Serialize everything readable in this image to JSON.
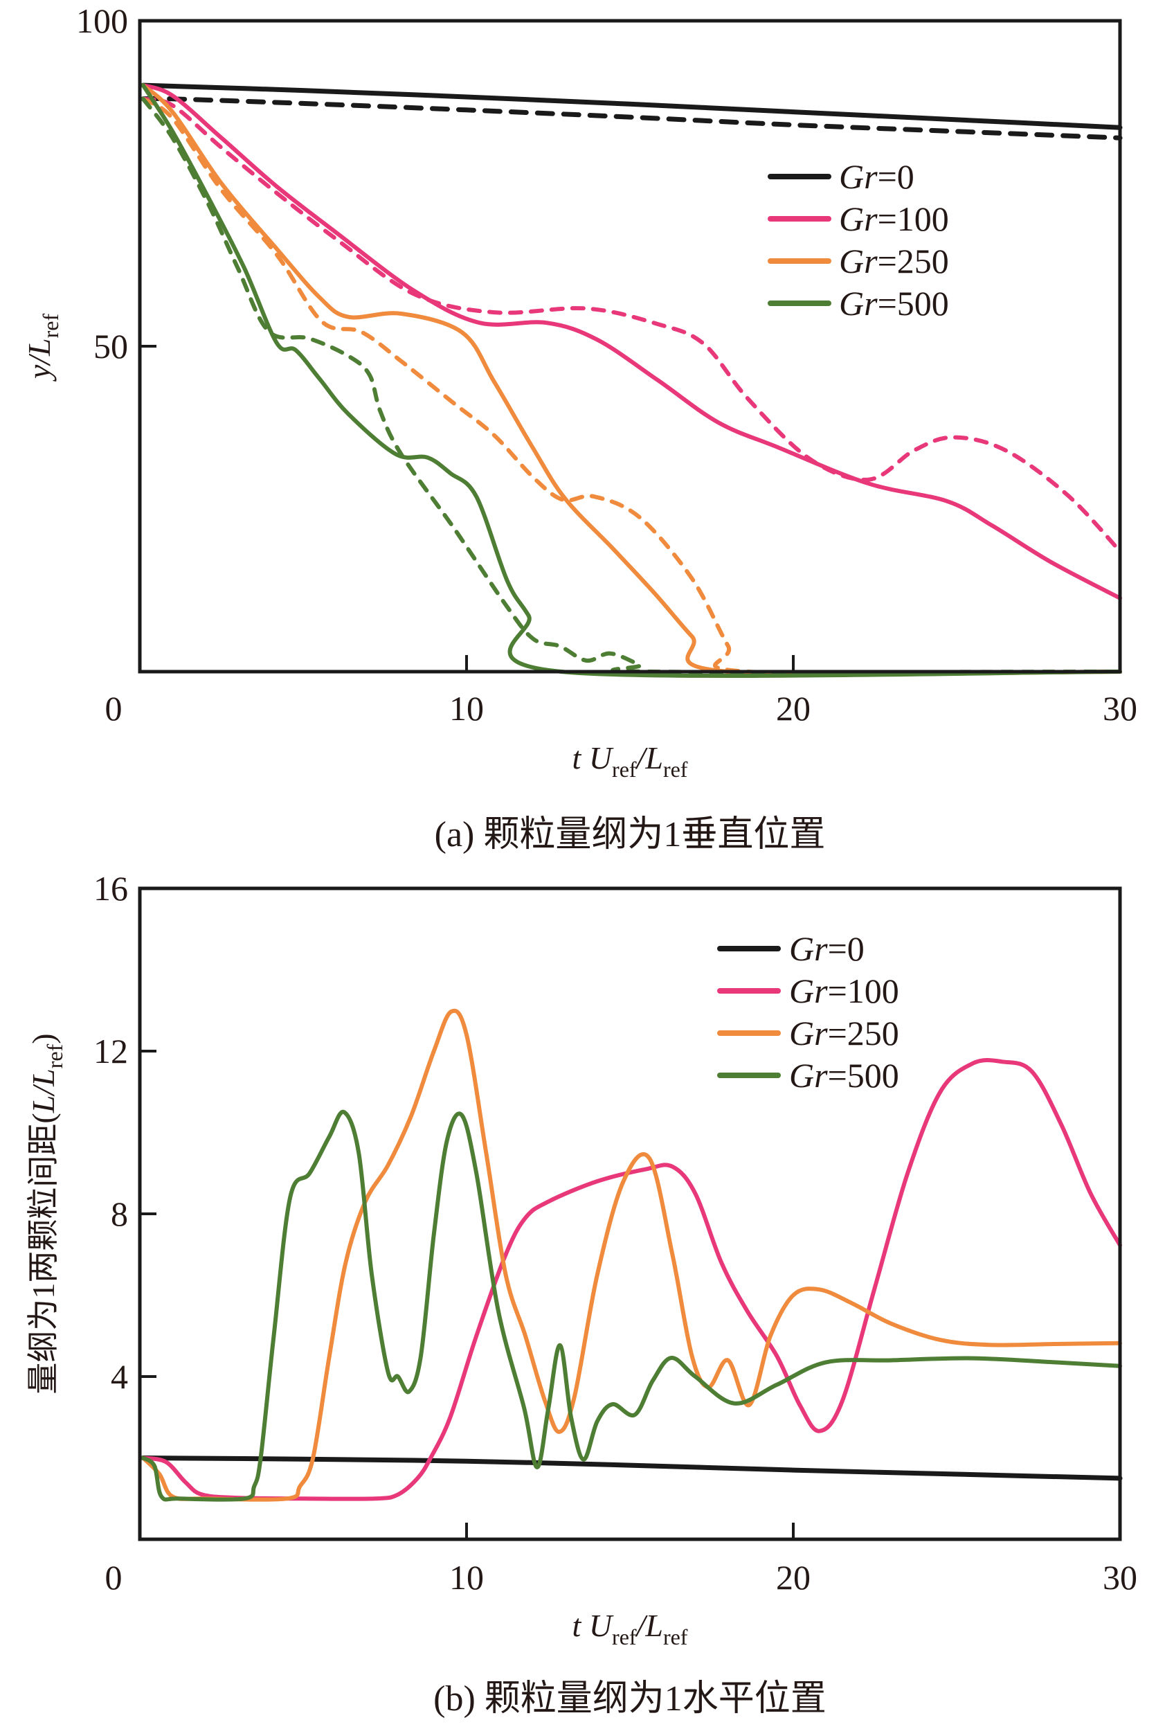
{
  "figure": {
    "colors": {
      "Gr=0": "#1a1a1a",
      "Gr=100": "#e8387a",
      "Gr=250": "#f08a3c",
      "Gr=500": "#4e7d34"
    }
  },
  "chart_data": [
    {
      "id": "a",
      "type": "line",
      "title": "",
      "caption": "(a) 颗粒量纲为1垂直位置",
      "xlabel": "t U_ref/L_ref",
      "ylabel": "y/L_ref",
      "xlim": [
        0,
        30
      ],
      "ylim": [
        0,
        100
      ],
      "xticks": [
        0,
        10,
        20,
        30
      ],
      "yticks": [
        50,
        100
      ],
      "grid": false,
      "legend": {
        "placement": "upper-right",
        "entries": [
          "Gr=0",
          "Gr=100",
          "Gr=250",
          "Gr=500"
        ]
      },
      "series": [
        {
          "name": "Gr=0",
          "style": "solid",
          "color": "#1a1a1a",
          "x": [
            0.1,
            5,
            10,
            15,
            20,
            25,
            30
          ],
          "y": [
            90.1,
            89.3,
            88.3,
            87.2,
            86.0,
            84.8,
            83.6
          ]
        },
        {
          "name": "Gr=0",
          "style": "dashed",
          "color": "#1a1a1a",
          "x": [
            0.1,
            1,
            5,
            10,
            15,
            20,
            25,
            30
          ],
          "y": [
            88.0,
            88.0,
            87.3,
            86.3,
            85.2,
            84.0,
            83.0,
            82.0
          ]
        },
        {
          "name": "Gr=100",
          "style": "solid",
          "color": "#e8387a",
          "x": [
            0.1,
            1,
            2.5,
            4.2,
            6,
            8.4,
            10.4,
            12.45,
            14,
            15.85,
            17.7,
            19.56,
            22.3,
            24.7,
            26.1,
            27.9,
            30
          ],
          "y": [
            90.1,
            88.5,
            82,
            74.5,
            67.5,
            58.5,
            53.6,
            53.6,
            51,
            44.8,
            38.3,
            34.4,
            28.9,
            26.2,
            22.4,
            16.8,
            11.3
          ]
        },
        {
          "name": "Gr=100",
          "style": "dashed",
          "color": "#e8387a",
          "x": [
            0.1,
            1,
            2.5,
            4.2,
            6,
            8.4,
            10.85,
            13.67,
            15.85,
            17.25,
            18.6,
            20.5,
            22.3,
            23.7,
            24.9,
            26.5,
            28.4,
            30
          ],
          "y": [
            88.0,
            87,
            80.5,
            73.5,
            66.5,
            58.0,
            55.2,
            55.8,
            53.4,
            50.4,
            42.0,
            32.7,
            29.5,
            34.0,
            36.0,
            34.0,
            27.1,
            18.5
          ]
        },
        {
          "name": "Gr=250",
          "style": "solid",
          "color": "#f08a3c",
          "x": [
            0.1,
            1,
            2.5,
            4.2,
            5.5,
            6.38,
            8.0,
            9.87,
            10.85,
            12.05,
            13.03,
            14.5,
            15.78,
            16.9,
            18.0,
            30
          ],
          "y": [
            90.1,
            86,
            75,
            64.9,
            57.5,
            54.5,
            55.0,
            52.1,
            44.5,
            34.2,
            26.5,
            18.8,
            11.9,
            5.4,
            0,
            0
          ]
        },
        {
          "name": "Gr=250",
          "style": "dashed",
          "color": "#f08a3c",
          "x": [
            0.1,
            1,
            2.5,
            4.2,
            5.57,
            6.78,
            8.0,
            9.62,
            10.85,
            12.05,
            12.95,
            13.9,
            15.3,
            16.9,
            18.0,
            18.6,
            30
          ],
          "y": [
            88.0,
            85,
            74,
            64.0,
            53.8,
            52.2,
            47.7,
            41.2,
            36.3,
            29.8,
            26.4,
            26.9,
            23.7,
            14.3,
            4,
            0,
            0
          ]
        },
        {
          "name": "Gr=500",
          "style": "solid",
          "color": "#4e7d34",
          "x": [
            0.1,
            1,
            2.08,
            3.2,
            4.19,
            4.77,
            5.5,
            6.38,
            7.84,
            8.8,
            9.5,
            10.3,
            11.25,
            11.9,
            12.9,
            30
          ],
          "y": [
            90.1,
            83,
            73,
            62,
            50.5,
            49.4,
            45,
            39.6,
            33.4,
            32.9,
            30.5,
            26.9,
            13.9,
            8.6,
            0,
            0
          ]
        },
        {
          "name": "Gr=500",
          "style": "dashed",
          "color": "#4e7d34",
          "x": [
            0.1,
            1,
            2.08,
            3.0,
            3.94,
            5.17,
            6.38,
            7.03,
            7.36,
            8.0,
            9.62,
            11.25,
            12.05,
            12.86,
            13.67,
            14.4,
            15.3,
            15.6,
            30
          ],
          "y": [
            88.0,
            82,
            72,
            62,
            52.3,
            51.2,
            48.5,
            45.6,
            40.0,
            33.4,
            22.0,
            9.9,
            5.0,
            3.9,
            1.7,
            2.8,
            1.0,
            0,
            0
          ]
        }
      ]
    },
    {
      "id": "b",
      "type": "line",
      "title": "",
      "caption": "(b) 颗粒量纲为1水平位置",
      "xlabel": "t U_ref/L_ref",
      "ylabel": "量纲为1两颗粒间距(L/L_ref)",
      "xlim": [
        0,
        30
      ],
      "ylim": [
        0,
        16
      ],
      "xticks": [
        0,
        10,
        20,
        30
      ],
      "yticks": [
        4,
        8,
        12,
        16
      ],
      "grid": false,
      "legend": {
        "placement": "upper-right",
        "entries": [
          "Gr=0",
          "Gr=100",
          "Gr=250",
          "Gr=500"
        ]
      },
      "series": [
        {
          "name": "Gr=0",
          "style": "solid",
          "color": "#1a1a1a",
          "x": [
            0.1,
            5,
            10,
            15,
            20,
            25,
            30
          ],
          "y": [
            2.0,
            1.97,
            1.92,
            1.82,
            1.7,
            1.6,
            1.5
          ]
        },
        {
          "name": "Gr=100",
          "style": "solid",
          "color": "#e8387a",
          "x": [
            0.1,
            0.8,
            1.4,
            1.9,
            3,
            5,
            7.2,
            7.9,
            8.5,
            8.9,
            9.5,
            10.3,
            11.2,
            11.8,
            12.5,
            14,
            15.5,
            16.3,
            17.0,
            17.8,
            18.6,
            19.5,
            20.2,
            20.8,
            21.5,
            22.5,
            23.5,
            24.5,
            25.5,
            26.4,
            27.3,
            28.2,
            29.1,
            30
          ],
          "y": [
            2.0,
            1.9,
            1.4,
            1.1,
            1.02,
            1.0,
            1.0,
            1.1,
            1.5,
            2.0,
            3.0,
            5.0,
            7.0,
            7.9,
            8.3,
            8.8,
            9.1,
            9.16,
            8.5,
            6.8,
            5.6,
            4.5,
            3.3,
            2.66,
            3.4,
            6.2,
            9.0,
            11.0,
            11.7,
            11.74,
            11.5,
            10.2,
            8.5,
            7.23
          ]
        },
        {
          "name": "Gr=250",
          "style": "solid",
          "color": "#f08a3c",
          "x": [
            0.1,
            0.6,
            1.0,
            2,
            4.5,
            4.9,
            5.3,
            5.8,
            6.3,
            6.9,
            7.6,
            8.3,
            9.0,
            9.53,
            10.0,
            10.6,
            11.2,
            11.8,
            12.4,
            12.84,
            13.3,
            14.0,
            14.8,
            15.6,
            16.3,
            16.9,
            17.4,
            18.0,
            18.65,
            19.3,
            20.0,
            20.8,
            21.8,
            23.0,
            24.5,
            26,
            28,
            30
          ],
          "y": [
            2.0,
            1.6,
            1.05,
            1.0,
            1.0,
            1.3,
            2.0,
            4.5,
            6.8,
            8.3,
            9.2,
            10.4,
            12.0,
            12.97,
            12.4,
            9.5,
            6.5,
            5.0,
            3.4,
            2.64,
            3.5,
            6.5,
            8.8,
            9.36,
            7.0,
            4.5,
            3.74,
            4.4,
            3.3,
            5.0,
            6.0,
            6.14,
            5.8,
            5.3,
            4.9,
            4.78,
            4.8,
            4.82
          ]
        },
        {
          "name": "Gr=500",
          "style": "solid",
          "color": "#4e7d34",
          "x": [
            0.1,
            0.45,
            0.66,
            1.2,
            3.2,
            3.5,
            3.7,
            4.1,
            4.6,
            5.2,
            5.8,
            6.25,
            6.7,
            7.1,
            7.6,
            7.9,
            8.24,
            8.6,
            9.0,
            9.4,
            9.85,
            10.3,
            10.97,
            11.76,
            12.16,
            12.5,
            12.86,
            13.2,
            13.58,
            14.0,
            14.47,
            15.15,
            15.7,
            16.27,
            17.0,
            18.2,
            19.5,
            21,
            23,
            25.5,
            28,
            30
          ],
          "y": [
            2.0,
            1.8,
            1.05,
            1.0,
            1.0,
            1.3,
            2.0,
            5.0,
            8.4,
            9.0,
            9.9,
            10.5,
            9.5,
            6.5,
            4.1,
            4.0,
            3.63,
            4.5,
            7.5,
            9.8,
            10.43,
            9.0,
            5.62,
            3.23,
            1.77,
            3.2,
            4.77,
            3.0,
            1.96,
            2.9,
            3.32,
            3.06,
            3.9,
            4.46,
            4.0,
            3.34,
            3.8,
            4.35,
            4.4,
            4.45,
            4.35,
            4.26
          ]
        }
      ]
    }
  ]
}
